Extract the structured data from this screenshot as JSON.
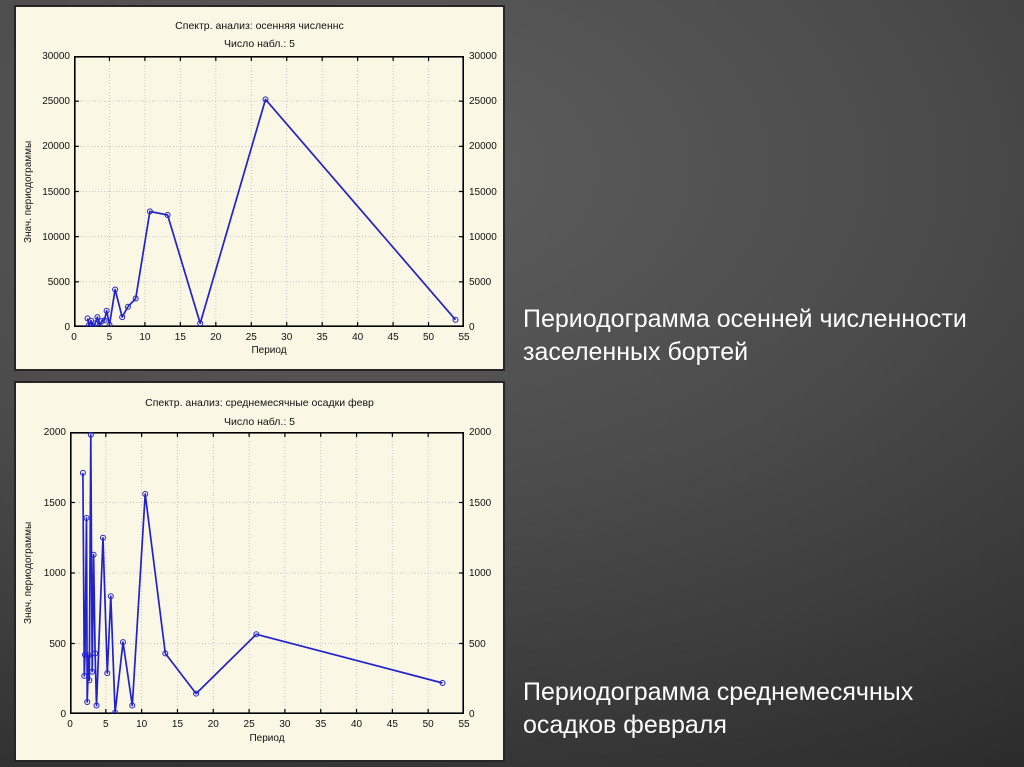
{
  "slide": {
    "captions": [
      "Периодограмма осенней численности заселенных бортей",
      "Периодограмма среднемесячных осадков февраля"
    ]
  },
  "chart_data": [
    {
      "type": "line",
      "title": "Спектр. анализ: осенняя численнс",
      "subtitle": "Число набл.: 5",
      "xlabel": "Период",
      "ylabel": "Знач. периодограммы",
      "xlim": [
        0,
        55
      ],
      "ylim": [
        0,
        30000
      ],
      "xticks": [
        0,
        5,
        10,
        15,
        20,
        25,
        30,
        35,
        40,
        45,
        50,
        55
      ],
      "yticks": [
        0,
        5000,
        10000,
        15000,
        20000,
        25000,
        30000
      ],
      "grid": true,
      "legend": "none",
      "line_color": "#2222cb",
      "marker": "open-circle",
      "x": [
        1.9,
        2.1,
        2.4,
        2.7,
        3.0,
        3.3,
        3.6,
        3.9,
        4.3,
        4.6,
        5.0,
        5.8,
        6.8,
        7.6,
        8.7,
        10.7,
        13.2,
        17.8,
        27.0,
        53.8
      ],
      "y": [
        950,
        200,
        700,
        100,
        400,
        1100,
        150,
        650,
        750,
        1800,
        250,
        4150,
        1100,
        2250,
        3150,
        12800,
        12400,
        400,
        25200,
        800
      ]
    },
    {
      "type": "line",
      "title": "Спектр. анализ: среднемесячные осадки февр",
      "subtitle": "Число набл.: 5",
      "xlabel": "Период",
      "ylabel": "Знач. периодограммы",
      "xlim": [
        0,
        55
      ],
      "ylim": [
        0,
        2000
      ],
      "xticks": [
        0,
        5,
        10,
        15,
        20,
        25,
        30,
        35,
        40,
        45,
        50,
        55
      ],
      "yticks": [
        0,
        500,
        1000,
        1500,
        2000
      ],
      "grid": true,
      "legend": "none",
      "line_color": "#2222cb",
      "marker": "open-circle",
      "x": [
        1.8,
        2.0,
        2.1,
        2.3,
        2.4,
        2.6,
        2.7,
        2.9,
        3.1,
        3.3,
        3.5,
        3.7,
        4.6,
        5.2,
        5.7,
        6.3,
        7.4,
        8.7,
        10.5,
        13.3,
        17.6,
        26.0,
        52.0
      ],
      "y": [
        1710,
        270,
        420,
        1390,
        85,
        415,
        240,
        1980,
        300,
        1130,
        430,
        60,
        1250,
        290,
        835,
        10,
        510,
        60,
        1560,
        430,
        145,
        565,
        220
      ]
    }
  ],
  "style": {
    "panel_bg": "#fbf7e5",
    "grid_color": "#c9c9c9",
    "frame_color": "#000000",
    "accent_blue": "#2222cb",
    "slide_bg": "#4b4b4b",
    "caption_color": "#ffffff"
  }
}
